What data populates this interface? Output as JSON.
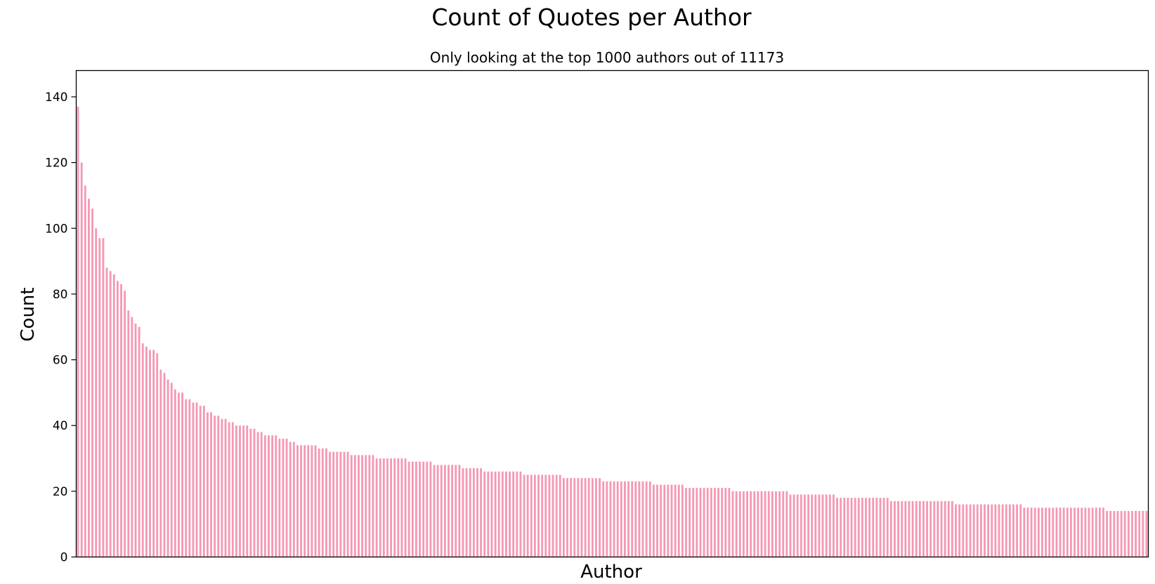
{
  "chart_data": {
    "type": "bar",
    "title": "Count of Quotes per Author",
    "subtitle": "Only looking at the top 1000 authors out of 11173",
    "xlabel": "Author",
    "ylabel": "Count",
    "ylim": [
      0,
      148
    ],
    "yticks": [
      0,
      20,
      40,
      60,
      80,
      100,
      120,
      140
    ],
    "grid": false,
    "bar_color": "#f598b3",
    "values": [
      137,
      120,
      113,
      109,
      106,
      100,
      97,
      97,
      88,
      87,
      86,
      84,
      83,
      81,
      75,
      73,
      71,
      70,
      65,
      64,
      63,
      63,
      62,
      57,
      56,
      54,
      53,
      51,
      50,
      50,
      48,
      48,
      47,
      47,
      46,
      46,
      44,
      44,
      43,
      43,
      42,
      42,
      41,
      41,
      40,
      40,
      40,
      40,
      39,
      39,
      38,
      38,
      37,
      37,
      37,
      37,
      36,
      36,
      36,
      35,
      35,
      34,
      34,
      34,
      34,
      34,
      34,
      33,
      33,
      33,
      32,
      32,
      32,
      32,
      32,
      32,
      31,
      31,
      31,
      31,
      31,
      31,
      31,
      30,
      30,
      30,
      30,
      30,
      30,
      30,
      30,
      30,
      29,
      29,
      29,
      29,
      29,
      29,
      29,
      28,
      28,
      28,
      28,
      28,
      28,
      28,
      28,
      27,
      27,
      27,
      27,
      27,
      27,
      26,
      26,
      26,
      26,
      26,
      26,
      26,
      26,
      26,
      26,
      26,
      25,
      25,
      25,
      25,
      25,
      25,
      25,
      25,
      25,
      25,
      25,
      24,
      24,
      24,
      24,
      24,
      24,
      24,
      24,
      24,
      24,
      24,
      23,
      23,
      23,
      23,
      23,
      23,
      23,
      23,
      23,
      23,
      23,
      23,
      23,
      23,
      22,
      22,
      22,
      22,
      22,
      22,
      22,
      22,
      22,
      21,
      21,
      21,
      21,
      21,
      21,
      21,
      21,
      21,
      21,
      21,
      21,
      21,
      20,
      20,
      20,
      20,
      20,
      20,
      20,
      20,
      20,
      20,
      20,
      20,
      20,
      20,
      20,
      20,
      19,
      19,
      19,
      19,
      19,
      19,
      19,
      19,
      19,
      19,
      19,
      19,
      19,
      18,
      18,
      18,
      18,
      18,
      18,
      18,
      18,
      18,
      18,
      18,
      18,
      18,
      18,
      18,
      17,
      17,
      17,
      17,
      17,
      17,
      17,
      17,
      17,
      17,
      17,
      17,
      17,
      17,
      17,
      17,
      17,
      17,
      16,
      16,
      16,
      16,
      16,
      16,
      16,
      16,
      16,
      16,
      16,
      16,
      16,
      16,
      16,
      16,
      16,
      16,
      16,
      15,
      15,
      15,
      15,
      15,
      15,
      15,
      15,
      15,
      15,
      15,
      15,
      15,
      15,
      15,
      15,
      15,
      15,
      15,
      15,
      15,
      15,
      15,
      14,
      14,
      14,
      14,
      14,
      14,
      14,
      14,
      14,
      14,
      14,
      14
    ]
  }
}
